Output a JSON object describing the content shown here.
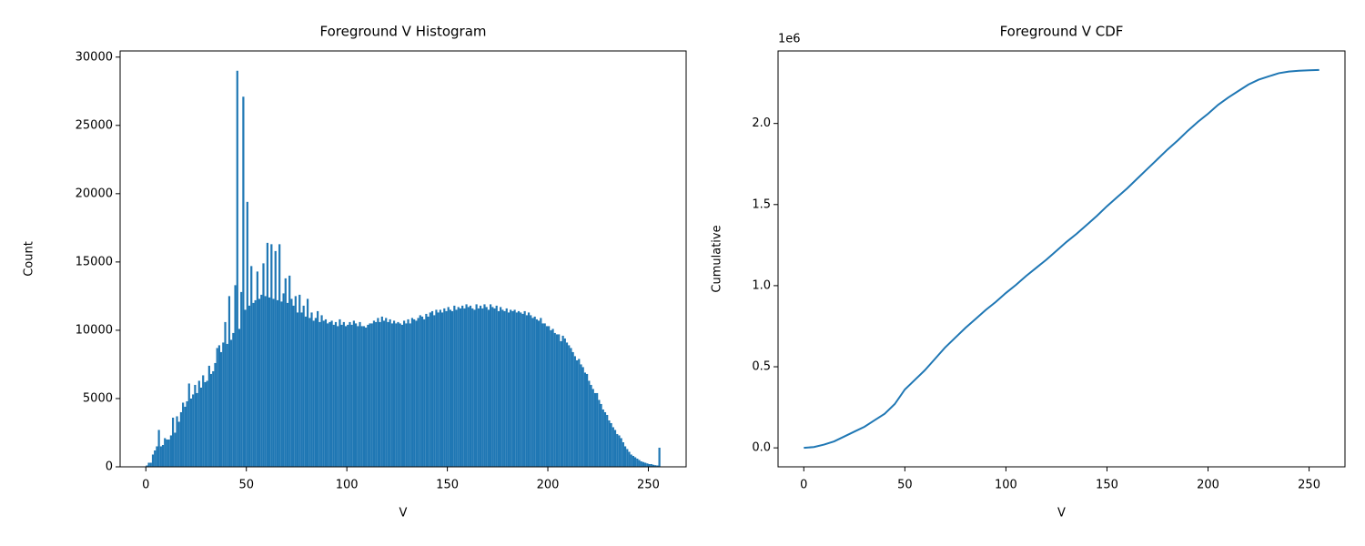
{
  "chart_data": [
    {
      "type": "histogram",
      "title": "Foreground V Histogram",
      "x_label": "V",
      "y_label": "Count",
      "color": "#1f77b4",
      "bins": [
        0,
        1,
        2,
        3,
        4,
        5,
        6,
        7,
        8,
        9,
        10,
        11,
        12,
        13,
        14,
        15,
        16,
        17,
        18,
        19,
        20,
        21,
        22,
        23,
        24,
        25,
        26,
        27,
        28,
        29,
        30,
        31,
        32,
        33,
        34,
        35,
        36,
        37,
        38,
        39,
        40,
        41,
        42,
        43,
        44,
        45,
        46,
        47,
        48,
        49,
        50,
        51,
        52,
        53,
        54,
        55,
        56,
        57,
        58,
        59,
        60,
        61,
        62,
        63,
        64,
        65,
        66,
        67,
        68,
        69,
        70,
        71,
        72,
        73,
        74,
        75,
        76,
        77,
        78,
        79,
        80,
        81,
        82,
        83,
        84,
        85,
        86,
        87,
        88,
        89,
        90,
        91,
        92,
        93,
        94,
        95,
        96,
        97,
        98,
        99,
        100,
        101,
        102,
        103,
        104,
        105,
        106,
        107,
        108,
        109,
        110,
        111,
        112,
        113,
        114,
        115,
        116,
        117,
        118,
        119,
        120,
        121,
        122,
        123,
        124,
        125,
        126,
        127,
        128,
        129,
        130,
        131,
        132,
        133,
        134,
        135,
        136,
        137,
        138,
        139,
        140,
        141,
        142,
        143,
        144,
        145,
        146,
        147,
        148,
        149,
        150,
        151,
        152,
        153,
        154,
        155,
        156,
        157,
        158,
        159,
        160,
        161,
        162,
        163,
        164,
        165,
        166,
        167,
        168,
        169,
        170,
        171,
        172,
        173,
        174,
        175,
        176,
        177,
        178,
        179,
        180,
        181,
        182,
        183,
        184,
        185,
        186,
        187,
        188,
        189,
        190,
        191,
        192,
        193,
        194,
        195,
        196,
        197,
        198,
        199,
        200,
        201,
        202,
        203,
        204,
        205,
        206,
        207,
        208,
        209,
        210,
        211,
        212,
        213,
        214,
        215,
        216,
        217,
        218,
        219,
        220,
        221,
        222,
        223,
        224,
        225,
        226,
        227,
        228,
        229,
        230,
        231,
        232,
        233,
        234,
        235,
        236,
        237,
        238,
        239,
        240,
        241,
        242,
        243,
        244,
        245,
        246,
        247,
        248,
        249,
        250,
        251,
        252,
        253,
        254,
        255,
        256
      ],
      "values": [
        100,
        300,
        300,
        900,
        1200,
        1500,
        2700,
        1500,
        1600,
        2100,
        2000,
        2000,
        2300,
        3600,
        2500,
        3700,
        3300,
        4000,
        4700,
        4400,
        4800,
        6100,
        5000,
        5300,
        6000,
        5400,
        6300,
        5800,
        6700,
        6200,
        6300,
        7400,
        6800,
        7000,
        7600,
        8700,
        8900,
        8400,
        9100,
        10600,
        9000,
        12500,
        9300,
        9800,
        13300,
        29000,
        10100,
        12800,
        27100,
        11500,
        19400,
        11800,
        14700,
        12000,
        12200,
        14300,
        12300,
        12600,
        14900,
        12500,
        16400,
        12400,
        16300,
        12300,
        15800,
        12200,
        16300,
        12100,
        12700,
        13800,
        12000,
        14000,
        12300,
        11800,
        12500,
        11300,
        12600,
        11300,
        11800,
        11000,
        12300,
        10900,
        11300,
        10700,
        10900,
        11400,
        10600,
        11100,
        10700,
        10800,
        10500,
        10600,
        10700,
        10400,
        10600,
        10300,
        10800,
        10400,
        10600,
        10300,
        10400,
        10600,
        10400,
        10700,
        10500,
        10300,
        10600,
        10300,
        10300,
        10200,
        10400,
        10500,
        10500,
        10700,
        10600,
        10900,
        10600,
        11000,
        10700,
        10900,
        10600,
        10800,
        10500,
        10700,
        10500,
        10600,
        10500,
        10400,
        10700,
        10500,
        10800,
        10500,
        10900,
        10800,
        10700,
        10900,
        11100,
        11000,
        10800,
        11200,
        11000,
        11300,
        11400,
        11100,
        11500,
        11300,
        11500,
        11300,
        11600,
        11400,
        11700,
        11500,
        11400,
        11800,
        11500,
        11700,
        11600,
        11800,
        11600,
        11900,
        11700,
        11800,
        11600,
        11500,
        11900,
        11600,
        11800,
        11600,
        11900,
        11700,
        11500,
        11900,
        11700,
        11600,
        11800,
        11400,
        11700,
        11500,
        11400,
        11600,
        11300,
        11500,
        11400,
        11500,
        11300,
        11400,
        11300,
        11200,
        11400,
        11100,
        11300,
        11100,
        10900,
        11000,
        10800,
        10700,
        10900,
        10500,
        10500,
        10300,
        10300,
        10000,
        10100,
        9800,
        9700,
        9700,
        9200,
        9600,
        9400,
        9100,
        8900,
        8700,
        8400,
        8100,
        7800,
        7900,
        7500,
        7300,
        6900,
        6800,
        6300,
        6000,
        5700,
        5400,
        5400,
        4900,
        4600,
        4200,
        4000,
        3800,
        3400,
        3200,
        2900,
        2700,
        2400,
        2300,
        2100,
        1800,
        1500,
        1300,
        1100,
        900,
        800,
        700,
        600,
        500,
        400,
        350,
        300,
        250,
        200,
        200,
        150,
        120,
        100,
        1400
      ],
      "xlim": [
        -12.8,
        268.8
      ],
      "xticks": [
        0,
        50,
        100,
        150,
        200,
        250
      ],
      "ylim": [
        0,
        30450
      ],
      "yticks": [
        0,
        5000,
        10000,
        15000,
        20000,
        25000,
        30000
      ]
    },
    {
      "type": "line",
      "title": "Foreground V CDF",
      "x_label": "V",
      "y_label": "Cumulative",
      "y_offset_label": "1e6",
      "color": "#1f77b4",
      "x": [
        0,
        5,
        10,
        15,
        20,
        25,
        30,
        35,
        40,
        45,
        50,
        55,
        60,
        65,
        70,
        75,
        80,
        85,
        90,
        95,
        100,
        105,
        110,
        115,
        120,
        125,
        130,
        135,
        140,
        145,
        150,
        155,
        160,
        165,
        170,
        175,
        180,
        185,
        190,
        195,
        200,
        205,
        210,
        215,
        220,
        225,
        230,
        235,
        240,
        245,
        250,
        255
      ],
      "values": [
        0,
        0.005,
        0.02,
        0.04,
        0.07,
        0.1,
        0.13,
        0.17,
        0.21,
        0.27,
        0.36,
        0.42,
        0.48,
        0.55,
        0.62,
        0.68,
        0.74,
        0.795,
        0.85,
        0.9,
        0.955,
        1.005,
        1.06,
        1.11,
        1.16,
        1.215,
        1.27,
        1.32,
        1.375,
        1.43,
        1.49,
        1.545,
        1.6,
        1.66,
        1.72,
        1.78,
        1.84,
        1.895,
        1.955,
        2.01,
        2.06,
        2.115,
        2.16,
        2.2,
        2.24,
        2.27,
        2.29,
        2.31,
        2.32,
        2.325,
        2.328,
        2.33
      ],
      "xlim": [
        -12.75,
        267.75
      ],
      "xticks": [
        0,
        50,
        100,
        150,
        200,
        250
      ],
      "ylim": [
        -0.117,
        2.447
      ],
      "yticks": [
        {
          "value": 0,
          "label": "0.0"
        },
        0.5,
        {
          "value": 1,
          "label": "1.0"
        },
        1.5,
        {
          "value": 2,
          "label": "2.0"
        }
      ]
    }
  ]
}
